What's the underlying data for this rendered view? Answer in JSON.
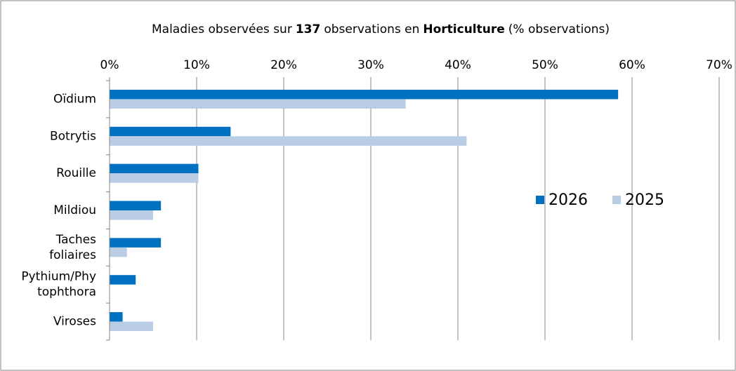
{
  "chart_data": {
    "type": "hbar",
    "title": [
      "Maladies observées sur",
      "137",
      "observations en",
      "Horticulture",
      "(% observations)"
    ],
    "title_bold": [
      false,
      true,
      false,
      true,
      false
    ],
    "categories": [
      [
        "Oïdium"
      ],
      [
        "Botrytis"
      ],
      [
        "Rouille"
      ],
      [
        "Mildiou"
      ],
      [
        "Taches",
        "foliaires"
      ],
      [
        "Pythium/Phy",
        "tophthora"
      ],
      [
        "Viroses"
      ]
    ],
    "series": [
      {
        "name": "2026",
        "color": "#0070c0",
        "values": [
          58.4,
          13.9,
          10.2,
          5.9,
          5.9,
          3.0,
          1.5
        ]
      },
      {
        "name": "2025",
        "color": "#b9cde5",
        "values": [
          34.0,
          41.0,
          10.2,
          5.0,
          2.0,
          0,
          5.0
        ]
      }
    ],
    "xlim": [
      0,
      70
    ],
    "xticks": [
      {
        "value": 0,
        "label": "0%"
      },
      {
        "value": 10,
        "label": "10%"
      },
      {
        "value": 20,
        "label": "20%"
      },
      {
        "value": 30,
        "label": "30%"
      },
      {
        "value": 40,
        "label": "40%"
      },
      {
        "value": 50,
        "label": "50%"
      },
      {
        "value": 60,
        "label": "60%"
      },
      {
        "value": 70,
        "label": "70%"
      }
    ],
    "grid": true,
    "legend": "right"
  }
}
